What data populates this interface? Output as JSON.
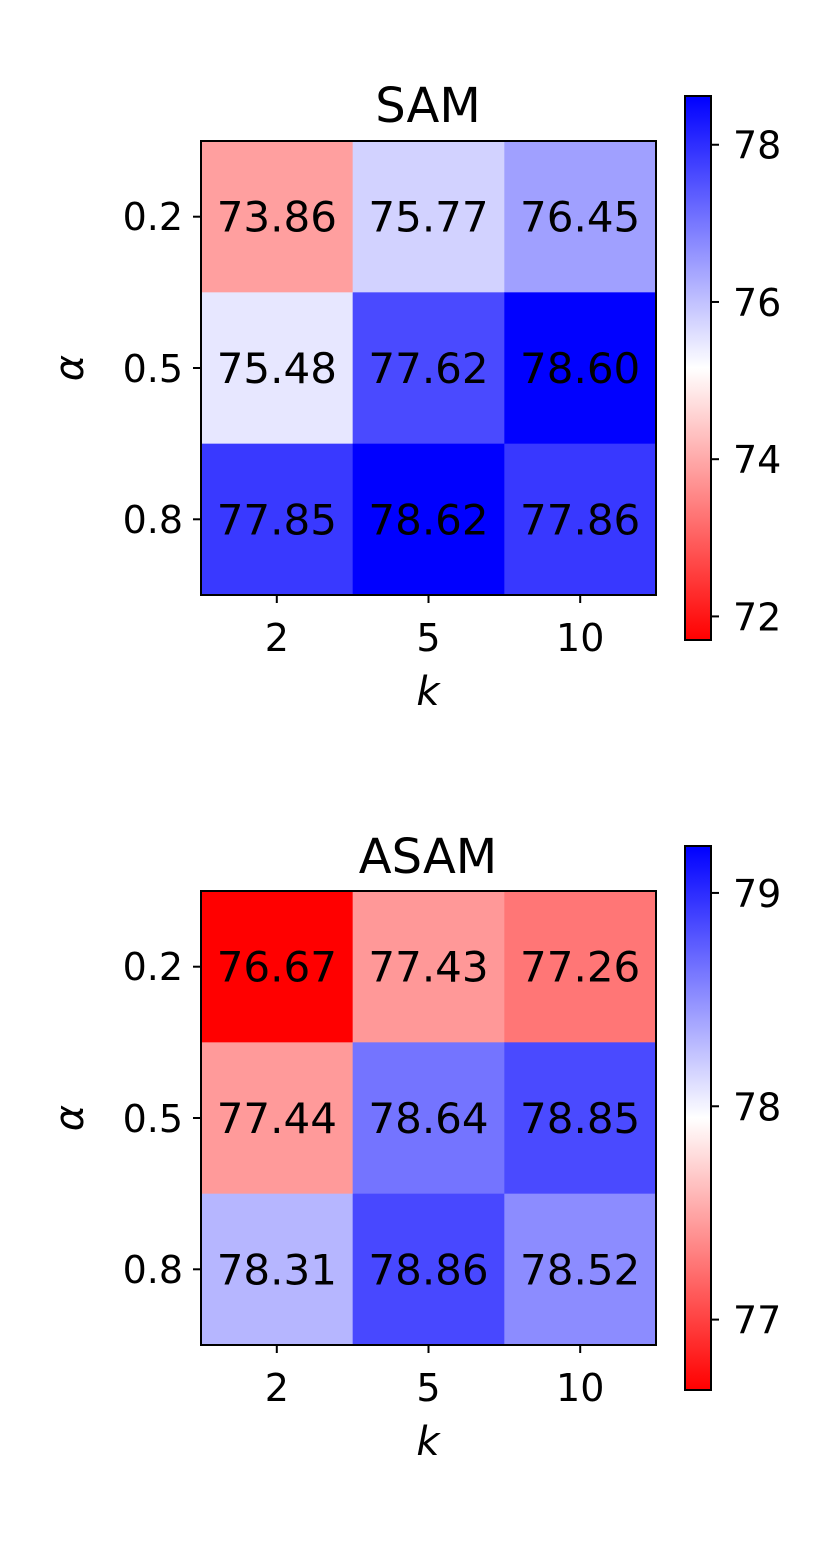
{
  "chart_data": [
    {
      "type": "heatmap",
      "title": "SAM",
      "xlabel": "k",
      "ylabel": "α",
      "x_categories": [
        "2",
        "5",
        "10"
      ],
      "y_categories": [
        "0.2",
        "0.5",
        "0.8"
      ],
      "values": [
        [
          73.86,
          75.77,
          76.45
        ],
        [
          75.48,
          77.62,
          78.6
        ],
        [
          77.85,
          78.62,
          77.86
        ]
      ],
      "value_labels": [
        [
          "73.86",
          "75.77",
          "76.45"
        ],
        [
          "75.48",
          "77.62",
          "78.60"
        ],
        [
          "77.85",
          "78.62",
          "77.86"
        ]
      ],
      "colormap": "bwr_r",
      "colorbar": {
        "range": [
          71.7,
          78.62
        ],
        "center": 75.16,
        "ticks": [
          72,
          74,
          76,
          78
        ],
        "tick_labels": [
          "72",
          "74",
          "76",
          "78"
        ]
      },
      "grid": false,
      "legend": "colorbar-right"
    },
    {
      "type": "heatmap",
      "title": "ASAM",
      "xlabel": "k",
      "ylabel": "α",
      "x_categories": [
        "2",
        "5",
        "10"
      ],
      "y_categories": [
        "0.2",
        "0.5",
        "0.8"
      ],
      "values": [
        [
          76.67,
          77.43,
          77.26
        ],
        [
          77.44,
          78.64,
          78.85
        ],
        [
          78.31,
          78.86,
          78.52
        ]
      ],
      "value_labels": [
        [
          "76.67",
          "77.43",
          "77.26"
        ],
        [
          "77.44",
          "78.64",
          "78.85"
        ],
        [
          "78.31",
          "78.86",
          "78.52"
        ]
      ],
      "colormap": "bwr_r",
      "colorbar": {
        "range": [
          76.67,
          79.22
        ],
        "center": 77.945,
        "ticks": [
          77,
          78,
          79
        ],
        "tick_labels": [
          "77",
          "78",
          "79"
        ]
      },
      "grid": false,
      "legend": "colorbar-right"
    }
  ],
  "colors": {
    "low": "#ff0000",
    "mid": "#ffffff",
    "high": "#0000ff"
  }
}
